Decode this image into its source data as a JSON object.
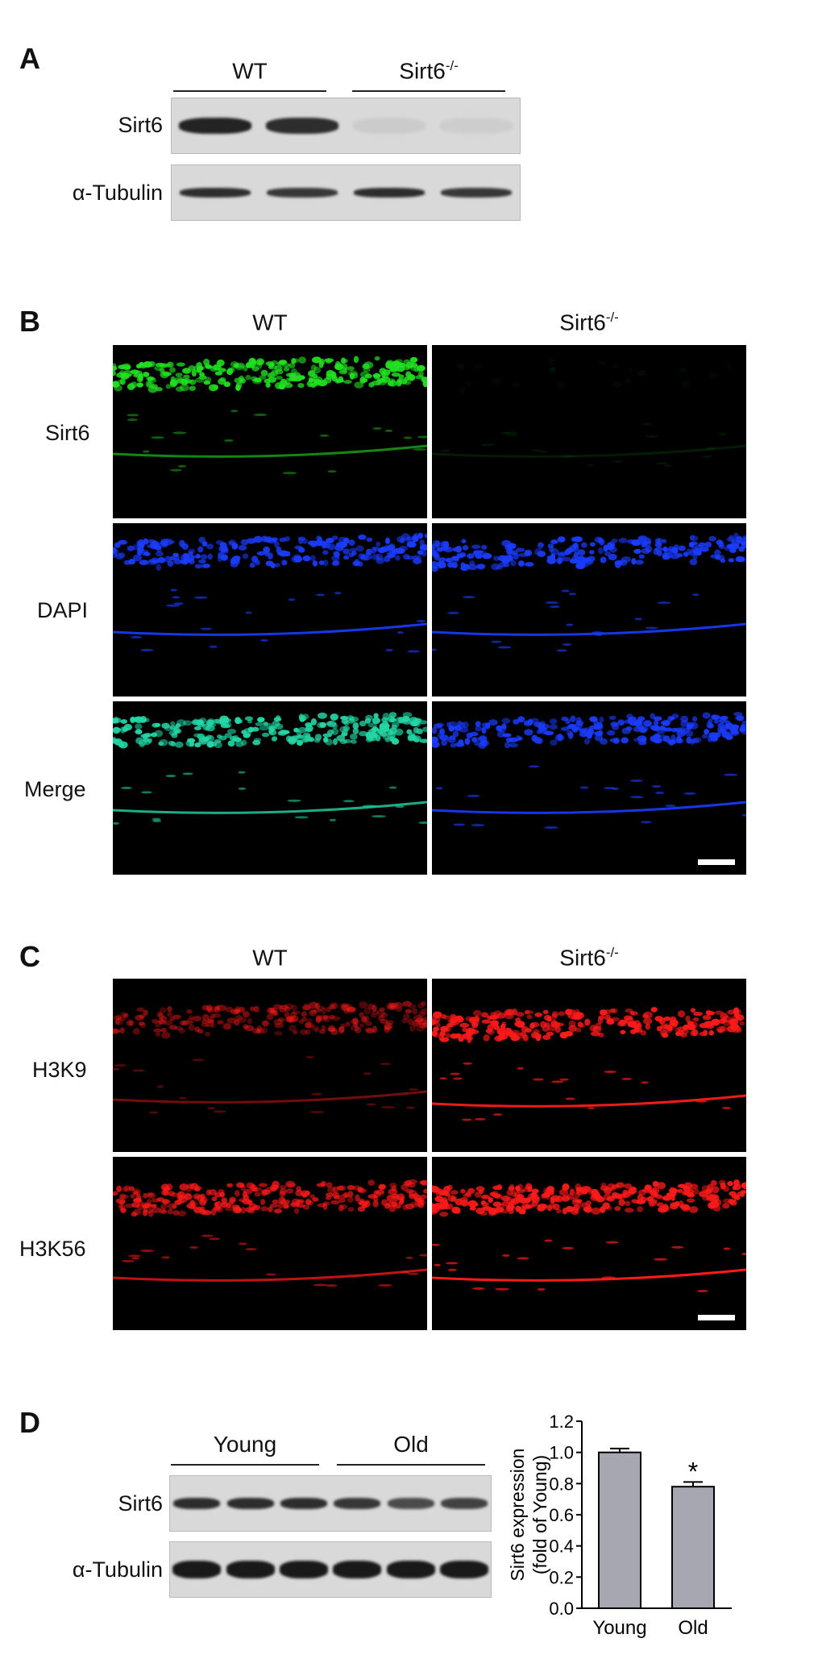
{
  "panelA": {
    "letter": "A",
    "groups": [
      {
        "text": "WT",
        "sup": ""
      },
      {
        "text": "Sirt6",
        "sup": "-/-"
      }
    ],
    "rows": [
      "Sirt6",
      "α-Tubulin"
    ],
    "bands": {
      "row1": [
        0.9,
        0.85,
        0.06,
        0.05
      ],
      "row2": [
        0.85,
        0.8,
        0.85,
        0.8
      ]
    }
  },
  "panelB": {
    "letter": "B",
    "cols": [
      {
        "text": "WT",
        "sup": ""
      },
      {
        "text": "Sirt6",
        "sup": "-/-"
      }
    ],
    "rows": [
      "Sirt6",
      "DAPI",
      "Merge"
    ],
    "colors": {
      "green": "#21e021",
      "blue": "#1a3cff",
      "merge": "#24d7a6"
    }
  },
  "panelC": {
    "letter": "C",
    "cols": [
      {
        "text": "WT",
        "sup": ""
      },
      {
        "text": "Sirt6",
        "sup": "-/-"
      }
    ],
    "rows": [
      "H3K9",
      "H3K56"
    ],
    "colors": {
      "red": "#ff1a1a"
    }
  },
  "panelD": {
    "letter": "D",
    "groups": [
      "Young",
      "Old"
    ],
    "rows": [
      "Sirt6",
      "α-Tubulin"
    ],
    "bands": {
      "row1": [
        0.85,
        0.85,
        0.85,
        0.8,
        0.7,
        0.75
      ],
      "row2": [
        0.95,
        0.95,
        0.95,
        0.95,
        0.95,
        0.95
      ]
    }
  },
  "chart_data": {
    "type": "bar",
    "categories": [
      "Young",
      "Old"
    ],
    "values": [
      1.0,
      0.78
    ],
    "errors": [
      0.025,
      0.03
    ],
    "significance": [
      "",
      "*"
    ],
    "xlabel": "",
    "ylabel": "Sirt6 expression",
    "ylabel2": "(fold of Young)",
    "ylim": [
      0.0,
      1.2
    ],
    "yticks": [
      "0.0",
      "0.2",
      "0.4",
      "0.6",
      "0.8",
      "1.0",
      "1.2"
    ],
    "bar_color": "#a7a7b1",
    "grid": false
  }
}
